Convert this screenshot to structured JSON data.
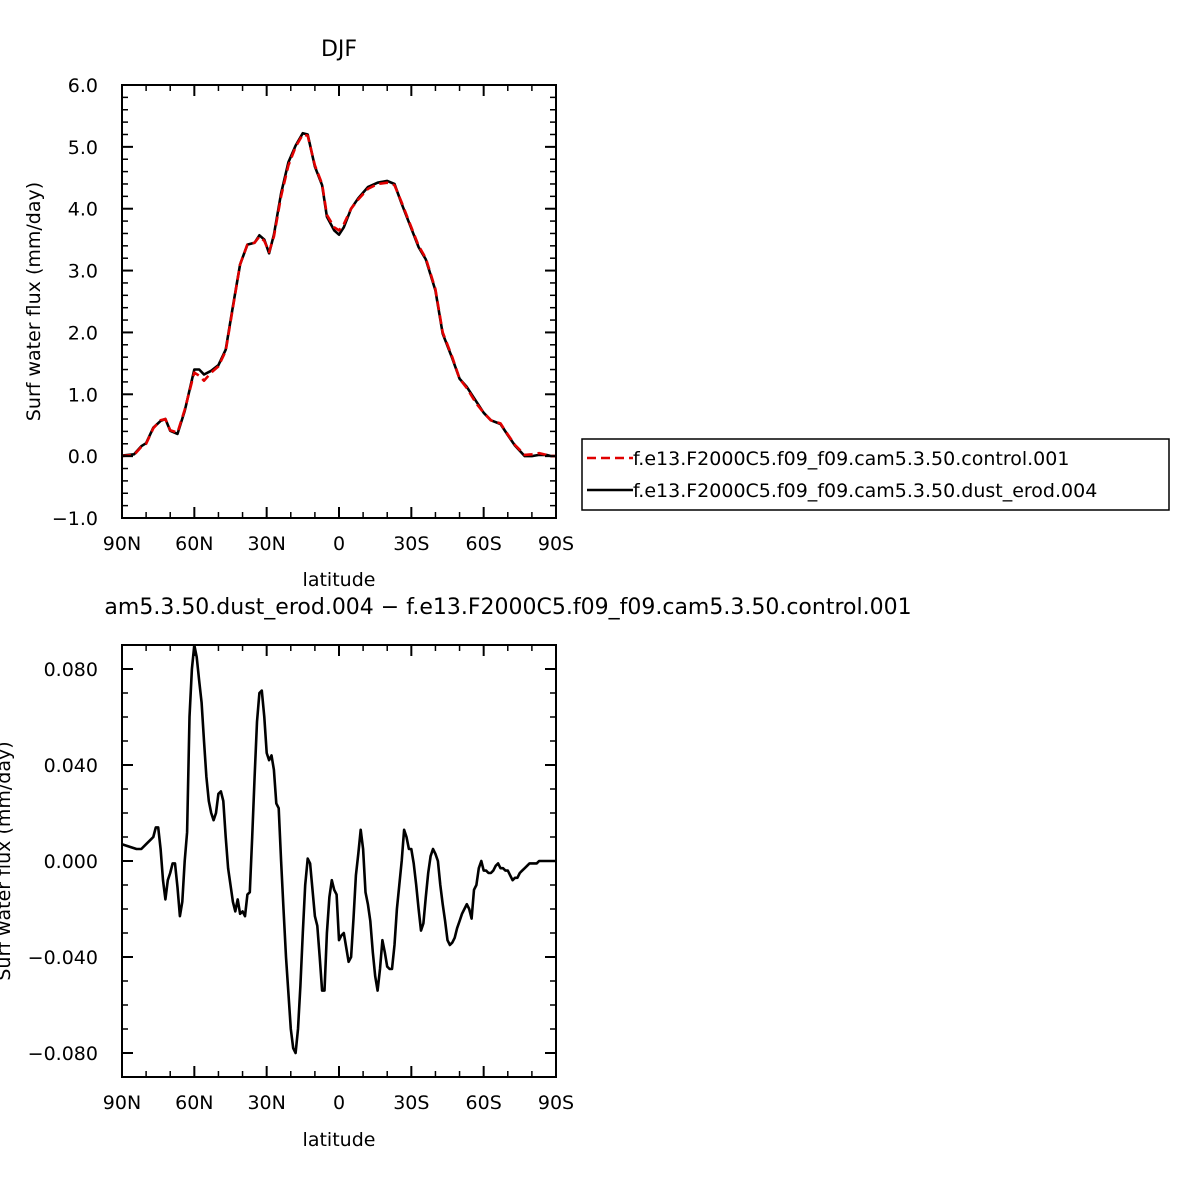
{
  "chart_data": [
    {
      "type": "line",
      "title": "DJF",
      "xlabel": "latitude",
      "ylabel": "Surf water flux (mm/day)",
      "xlim": [
        90,
        -90
      ],
      "ylim": [
        -1.0,
        6.0
      ],
      "x_ticks": [
        90,
        60,
        30,
        0,
        -30,
        -60,
        -90
      ],
      "x_tick_labels": [
        "90N",
        "60N",
        "30N",
        "0",
        "30S",
        "60S",
        "90S"
      ],
      "y_ticks": [
        -1.0,
        0.0,
        1.0,
        2.0,
        3.0,
        4.0,
        5.0,
        6.0
      ],
      "y_tick_labels": [
        "−1.0",
        "0.0",
        "1.0",
        "2.0",
        "3.0",
        "4.0",
        "5.0",
        "6.0"
      ],
      "legend_placement": "outside-right",
      "series": [
        {
          "name": "f.e13.F2000C5.f09_f09.cam5.3.50.control.001",
          "color": "#e00000",
          "dashed": true,
          "x": [
            90,
            85,
            82,
            80,
            77,
            74,
            72,
            70,
            67,
            64,
            60,
            58,
            56,
            53,
            50,
            47,
            44,
            41,
            38,
            35,
            33,
            31,
            29,
            27,
            24,
            21,
            18,
            15,
            13,
            10,
            7,
            5,
            2,
            0,
            -2,
            -5,
            -8,
            -12,
            -16,
            -20,
            -23,
            -26,
            -29,
            -33,
            -36,
            -40,
            -43,
            -47,
            -50,
            -53,
            -57,
            -60,
            -63,
            -67,
            -70,
            -73,
            -77,
            -80,
            -83,
            -86,
            -88,
            -90
          ],
          "y": [
            0.0,
            0.02,
            0.15,
            0.2,
            0.45,
            0.58,
            0.6,
            0.42,
            0.38,
            0.75,
            1.35,
            1.3,
            1.22,
            1.35,
            1.45,
            1.7,
            2.4,
            3.1,
            3.42,
            3.45,
            3.55,
            3.48,
            3.3,
            3.55,
            4.2,
            4.7,
            5.0,
            5.2,
            5.18,
            4.7,
            4.4,
            3.9,
            3.7,
            3.65,
            3.75,
            4.0,
            4.15,
            4.32,
            4.4,
            4.42,
            4.38,
            4.1,
            3.8,
            3.4,
            3.2,
            2.7,
            2.0,
            1.6,
            1.25,
            1.1,
            0.85,
            0.7,
            0.58,
            0.53,
            0.35,
            0.18,
            0.02,
            0.03,
            0.05,
            0.02,
            0.0,
            0.0
          ]
        },
        {
          "name": "f.e13.F2000C5.f09_f09.cam5.3.50.dust_erod.004",
          "color": "#000000",
          "dashed": false,
          "x": [
            90,
            85,
            82,
            80,
            77,
            74,
            72,
            70,
            67,
            64,
            60,
            58,
            56,
            53,
            50,
            47,
            44,
            41,
            38,
            35,
            33,
            31,
            29,
            27,
            24,
            21,
            18,
            15,
            13,
            10,
            7,
            5,
            2,
            0,
            -2,
            -5,
            -8,
            -12,
            -16,
            -20,
            -23,
            -26,
            -29,
            -33,
            -36,
            -40,
            -43,
            -47,
            -50,
            -53,
            -57,
            -60,
            -63,
            -67,
            -70,
            -73,
            -77,
            -80,
            -83,
            -86,
            -88,
            -90
          ],
          "y": [
            0.01,
            0.03,
            0.16,
            0.21,
            0.46,
            0.57,
            0.6,
            0.41,
            0.36,
            0.73,
            1.4,
            1.4,
            1.32,
            1.38,
            1.47,
            1.72,
            2.42,
            3.1,
            3.42,
            3.45,
            3.57,
            3.5,
            3.28,
            3.58,
            4.25,
            4.75,
            5.02,
            5.22,
            5.2,
            4.68,
            4.38,
            3.87,
            3.65,
            3.58,
            3.7,
            4.0,
            4.17,
            4.35,
            4.42,
            4.45,
            4.4,
            4.08,
            3.78,
            3.38,
            3.18,
            2.68,
            1.98,
            1.58,
            1.25,
            1.12,
            0.88,
            0.7,
            0.58,
            0.52,
            0.34,
            0.17,
            0.0,
            0.0,
            0.02,
            0.02,
            0.0,
            0.0
          ]
        }
      ]
    },
    {
      "type": "line",
      "title": "am5.3.50.dust_erod.004 − f.e13.F2000C5.f09_f09.cam5.3.50.control.001",
      "xlabel": "latitude",
      "ylabel": "Surf water flux (mm/day)",
      "xlim": [
        90,
        -90
      ],
      "ylim": [
        -0.09,
        0.09
      ],
      "x_ticks": [
        90,
        60,
        30,
        0,
        -30,
        -60,
        -90
      ],
      "x_tick_labels": [
        "90N",
        "60N",
        "30N",
        "0",
        "30S",
        "60S",
        "90S"
      ],
      "y_ticks": [
        -0.08,
        -0.04,
        0.0,
        0.04,
        0.08
      ],
      "y_tick_labels": [
        "−0.080",
        "−0.040",
        "0.000",
        "0.040",
        "0.080"
      ],
      "series": [
        {
          "color": "#000000",
          "dashed": false,
          "x": [
            90,
            87,
            84,
            82,
            80,
            78,
            77,
            76,
            75,
            74,
            73,
            72,
            71,
            70,
            69,
            68,
            67,
            66,
            65,
            64,
            63,
            62,
            61,
            60,
            59,
            58,
            57,
            56,
            55,
            54,
            53,
            52,
            51,
            50,
            49,
            48,
            47,
            46,
            45,
            44,
            43,
            42,
            41,
            40,
            39,
            38,
            37,
            36,
            35,
            34,
            33,
            32,
            31,
            30,
            29,
            28,
            27,
            26,
            25,
            24,
            23,
            22,
            21,
            20,
            19,
            18,
            17,
            16,
            15,
            14,
            13,
            12,
            11,
            10,
            9,
            8,
            7,
            6,
            5,
            4,
            3,
            2,
            1,
            0,
            -1,
            -2,
            -3,
            -4,
            -5,
            -6,
            -7,
            -8,
            -9,
            -10,
            -11,
            -12,
            -13,
            -14,
            -15,
            -16,
            -17,
            -18,
            -19,
            -20,
            -21,
            -22,
            -23,
            -24,
            -25,
            -26,
            -27,
            -28,
            -29,
            -30,
            -31,
            -32,
            -33,
            -34,
            -35,
            -36,
            -37,
            -38,
            -39,
            -40,
            -41,
            -42,
            -43,
            -44,
            -45,
            -46,
            -47,
            -48,
            -49,
            -50,
            -51,
            -52,
            -53,
            -54,
            -55,
            -56,
            -57,
            -58,
            -59,
            -60,
            -61,
            -62,
            -63,
            -64,
            -65,
            -66,
            -67,
            -68,
            -69,
            -70,
            -71,
            -72,
            -73,
            -74,
            -75,
            -76,
            -77,
            -78,
            -79,
            -80,
            -81,
            -82,
            -83,
            -84,
            -85,
            -86,
            -87,
            -88,
            -89,
            -90
          ],
          "y": [
            0.007,
            0.006,
            0.005,
            0.005,
            0.007,
            0.009,
            0.01,
            0.014,
            0.014,
            0.005,
            -0.008,
            -0.016,
            -0.008,
            -0.005,
            -0.001,
            -0.001,
            -0.011,
            -0.023,
            -0.017,
            0.0,
            0.012,
            0.06,
            0.08,
            0.09,
            0.085,
            0.075,
            0.066,
            0.05,
            0.035,
            0.025,
            0.02,
            0.017,
            0.02,
            0.028,
            0.029,
            0.025,
            0.01,
            -0.003,
            -0.01,
            -0.017,
            -0.021,
            -0.016,
            -0.022,
            -0.021,
            -0.023,
            -0.014,
            -0.013,
            0.01,
            0.035,
            0.058,
            0.07,
            0.071,
            0.06,
            0.045,
            0.042,
            0.044,
            0.038,
            0.024,
            0.022,
            0.0,
            -0.02,
            -0.04,
            -0.055,
            -0.07,
            -0.078,
            -0.08,
            -0.07,
            -0.052,
            -0.03,
            -0.01,
            0.001,
            -0.001,
            -0.012,
            -0.023,
            -0.027,
            -0.04,
            -0.054,
            -0.054,
            -0.03,
            -0.015,
            -0.008,
            -0.012,
            -0.014,
            -0.033,
            -0.031,
            -0.03,
            -0.036,
            -0.042,
            -0.04,
            -0.024,
            -0.006,
            0.003,
            0.013,
            0.005,
            -0.013,
            -0.018,
            -0.025,
            -0.038,
            -0.048,
            -0.054,
            -0.045,
            -0.033,
            -0.038,
            -0.044,
            -0.045,
            -0.045,
            -0.035,
            -0.02,
            -0.01,
            0.0,
            0.013,
            0.01,
            0.005,
            0.005,
            -0.001,
            -0.01,
            -0.02,
            -0.029,
            -0.026,
            -0.015,
            -0.005,
            0.002,
            0.005,
            0.003,
            0.0,
            -0.01,
            -0.018,
            -0.025,
            -0.033,
            -0.035,
            -0.034,
            -0.032,
            -0.028,
            -0.025,
            -0.022,
            -0.02,
            -0.018,
            -0.02,
            -0.024,
            -0.012,
            -0.01,
            -0.003,
            0.0,
            -0.004,
            -0.004,
            -0.005,
            -0.005,
            -0.004,
            -0.002,
            -0.001,
            -0.003,
            -0.003,
            -0.004,
            -0.004,
            -0.006,
            -0.008,
            -0.007,
            -0.007,
            -0.005,
            -0.004,
            -0.003,
            -0.002,
            -0.001,
            -0.001,
            -0.001,
            -0.001,
            0.0,
            0.0,
            0.0,
            0.0,
            0.0,
            0.0,
            0.0,
            0.0
          ]
        }
      ]
    }
  ]
}
